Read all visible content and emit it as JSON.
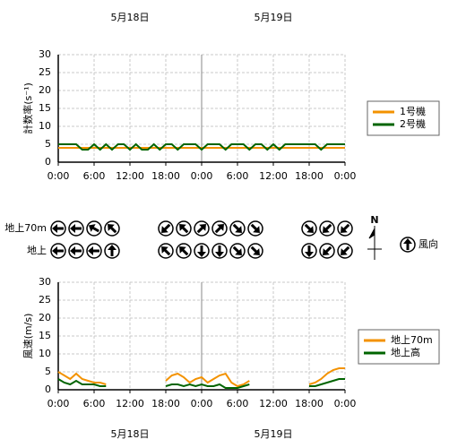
{
  "chart_data": [
    {
      "type": "line",
      "y_label": "計数率(s⁻¹)",
      "date_labels": [
        "5月18日",
        "5月19日"
      ],
      "xlim": [
        0,
        48
      ],
      "xticks": [
        {
          "value": 0,
          "label": "0:00"
        },
        {
          "value": 6,
          "label": "6:00"
        },
        {
          "value": 12,
          "label": "12:00"
        },
        {
          "value": 18,
          "label": "18:00"
        },
        {
          "value": 24,
          "label": "0:00"
        },
        {
          "value": 30,
          "label": "6:00"
        },
        {
          "value": 36,
          "label": "12:00"
        },
        {
          "value": 42,
          "label": "18:00"
        },
        {
          "value": 48,
          "label": "0:00"
        }
      ],
      "ylim": [
        0,
        30
      ],
      "yticks": [
        0,
        5,
        10,
        15,
        20,
        25,
        30
      ],
      "grid": true,
      "series": [
        {
          "name": "1号機",
          "color": "#f39200",
          "x": [
            0,
            48
          ],
          "values": [
            4,
            4
          ]
        },
        {
          "name": "2号機",
          "color": "#006400",
          "x": [
            0,
            1,
            2,
            3,
            4,
            5,
            6,
            7,
            8,
            9,
            10,
            11,
            12,
            13,
            14,
            15,
            16,
            17,
            18,
            19,
            20,
            21,
            22,
            23,
            24,
            25,
            26,
            27,
            28,
            29,
            30,
            31,
            32,
            33,
            34,
            35,
            36,
            37,
            38,
            39,
            40,
            41,
            42,
            43,
            44,
            45,
            46,
            47,
            48
          ],
          "values": [
            5,
            5,
            5,
            5,
            3.5,
            3.5,
            5,
            3.5,
            5,
            3.5,
            5,
            5,
            3.5,
            5,
            3.5,
            3.5,
            5,
            3.5,
            5,
            5,
            3.5,
            5,
            5,
            5,
            3.5,
            5,
            5,
            5,
            3.5,
            5,
            5,
            5,
            3.5,
            5,
            5,
            3.5,
            5,
            3.5,
            5,
            5,
            5,
            5,
            5,
            5,
            3.5,
            5,
            5,
            5,
            5
          ]
        }
      ]
    },
    {
      "type": "wind-direction",
      "compass_label": "N",
      "legend_label": "風向",
      "xlim": [
        0,
        48
      ],
      "rows": [
        {
          "name": "地上70m",
          "x": [
            0,
            3,
            6,
            9,
            18,
            21,
            24,
            27,
            30,
            33,
            42,
            45,
            48
          ],
          "values": [
            270,
            270,
            300,
            315,
            225,
            315,
            45,
            45,
            135,
            135,
            135,
            225,
            225
          ]
        },
        {
          "name": "地上",
          "x": [
            0,
            3,
            6,
            9,
            18,
            21,
            24,
            27,
            30,
            33,
            42,
            45,
            48
          ],
          "values": [
            270,
            270,
            270,
            0,
            315,
            315,
            180,
            180,
            135,
            135,
            180,
            225,
            225
          ]
        }
      ]
    },
    {
      "type": "line",
      "y_label": "風速(m/s)",
      "date_labels": [
        "5月18日",
        "5月19日"
      ],
      "xlim": [
        0,
        48
      ],
      "xticks": [
        {
          "value": 0,
          "label": "0:00"
        },
        {
          "value": 6,
          "label": "6:00"
        },
        {
          "value": 12,
          "label": "12:00"
        },
        {
          "value": 18,
          "label": "18:00"
        },
        {
          "value": 24,
          "label": "0:00"
        },
        {
          "value": 30,
          "label": "6:00"
        },
        {
          "value": 36,
          "label": "12:00"
        },
        {
          "value": 42,
          "label": "18:00"
        },
        {
          "value": 48,
          "label": "0:00"
        }
      ],
      "ylim": [
        0,
        30
      ],
      "yticks": [
        0,
        5,
        10,
        15,
        20,
        25,
        30
      ],
      "grid": true,
      "series": [
        {
          "name": "地上70m",
          "color": "#f39200",
          "x": [
            0,
            1,
            2,
            3,
            4,
            5,
            6,
            7,
            8,
            9,
            10,
            11,
            12,
            13,
            14,
            15,
            16,
            17,
            18,
            19,
            20,
            21,
            22,
            23,
            24,
            25,
            26,
            27,
            28,
            29,
            30,
            31,
            32,
            33,
            34,
            35,
            36,
            37,
            38,
            39,
            40,
            41,
            42,
            43,
            44,
            45,
            46,
            47,
            48
          ],
          "values": [
            5,
            4,
            3,
            4.5,
            3,
            2.5,
            2,
            2,
            1.5,
            null,
            null,
            null,
            null,
            null,
            null,
            null,
            null,
            null,
            2.5,
            4,
            4.5,
            3.5,
            2,
            3,
            3.5,
            2,
            3,
            4,
            4.5,
            2,
            1,
            1.5,
            2.5,
            null,
            null,
            null,
            null,
            null,
            null,
            null,
            null,
            null,
            1.5,
            2,
            3,
            4.5,
            5.5,
            6,
            6
          ]
        },
        {
          "name": "地上高",
          "color": "#006400",
          "x": [
            0,
            1,
            2,
            3,
            4,
            5,
            6,
            7,
            8,
            9,
            10,
            11,
            12,
            13,
            14,
            15,
            16,
            17,
            18,
            19,
            20,
            21,
            22,
            23,
            24,
            25,
            26,
            27,
            28,
            29,
            30,
            31,
            32,
            33,
            34,
            35,
            36,
            37,
            38,
            39,
            40,
            41,
            42,
            43,
            44,
            45,
            46,
            47,
            48
          ],
          "values": [
            3,
            2,
            1.5,
            2.5,
            1.5,
            1.5,
            1.5,
            1,
            1,
            null,
            null,
            null,
            null,
            null,
            null,
            null,
            null,
            null,
            1,
            1.5,
            1.5,
            1,
            1.5,
            1,
            1.5,
            1,
            1,
            1.5,
            0.5,
            0.5,
            0.5,
            1,
            1.5,
            null,
            null,
            null,
            null,
            null,
            null,
            null,
            null,
            null,
            1,
            1,
            1.5,
            2,
            2.5,
            3,
            3
          ]
        }
      ]
    }
  ]
}
